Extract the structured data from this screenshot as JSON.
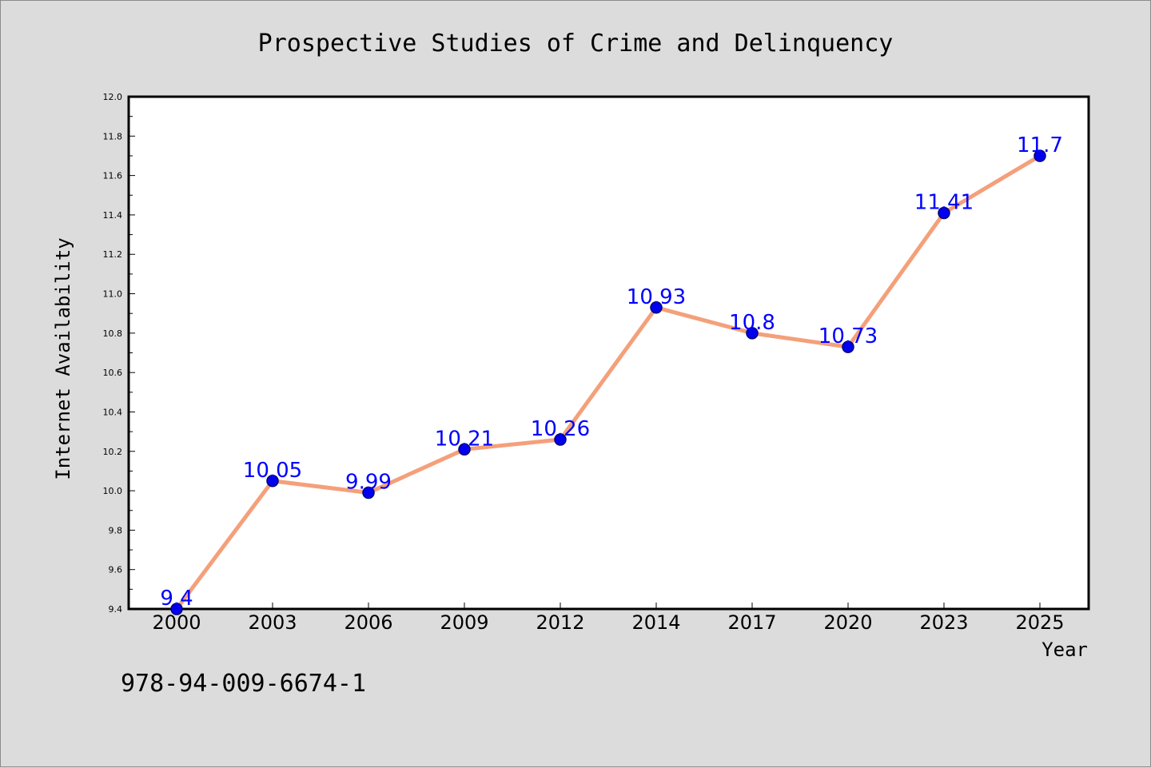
{
  "chart_data": {
    "type": "line",
    "title": "Prospective Studies of Crime and Delinquency",
    "xlabel": "Year",
    "ylabel": "Internet Availability",
    "categories": [
      "2000",
      "2003",
      "2006",
      "2009",
      "2012",
      "2014",
      "2017",
      "2020",
      "2023",
      "2025"
    ],
    "series": [
      {
        "values": [
          9.4,
          10.05,
          9.99,
          10.21,
          10.26,
          10.93,
          10.8,
          10.73,
          11.41,
          11.7
        ],
        "data_labels": [
          "9.4",
          "10.05",
          "9.99",
          "10.21",
          "10.26",
          "10.93",
          "10.8",
          "10.73",
          "11.41",
          "11.7"
        ]
      }
    ],
    "ylim": [
      9.4,
      12.0
    ],
    "yticks": [
      "9.4",
      "9.6",
      "9.8",
      "10.0",
      "10.2",
      "10.4",
      "10.6",
      "10.8",
      "11.0",
      "11.2",
      "11.4",
      "11.6",
      "11.8",
      "12.0"
    ],
    "grid": false,
    "legend": "none",
    "colors": {
      "line": "#f4a07a",
      "marker": "#0000ee",
      "marker_edge": "#00007a",
      "data_label": "#0000ff",
      "background": "#dcdcdc",
      "plot_background": "#ffffff"
    }
  },
  "footnote": "978-94-009-6674-1"
}
